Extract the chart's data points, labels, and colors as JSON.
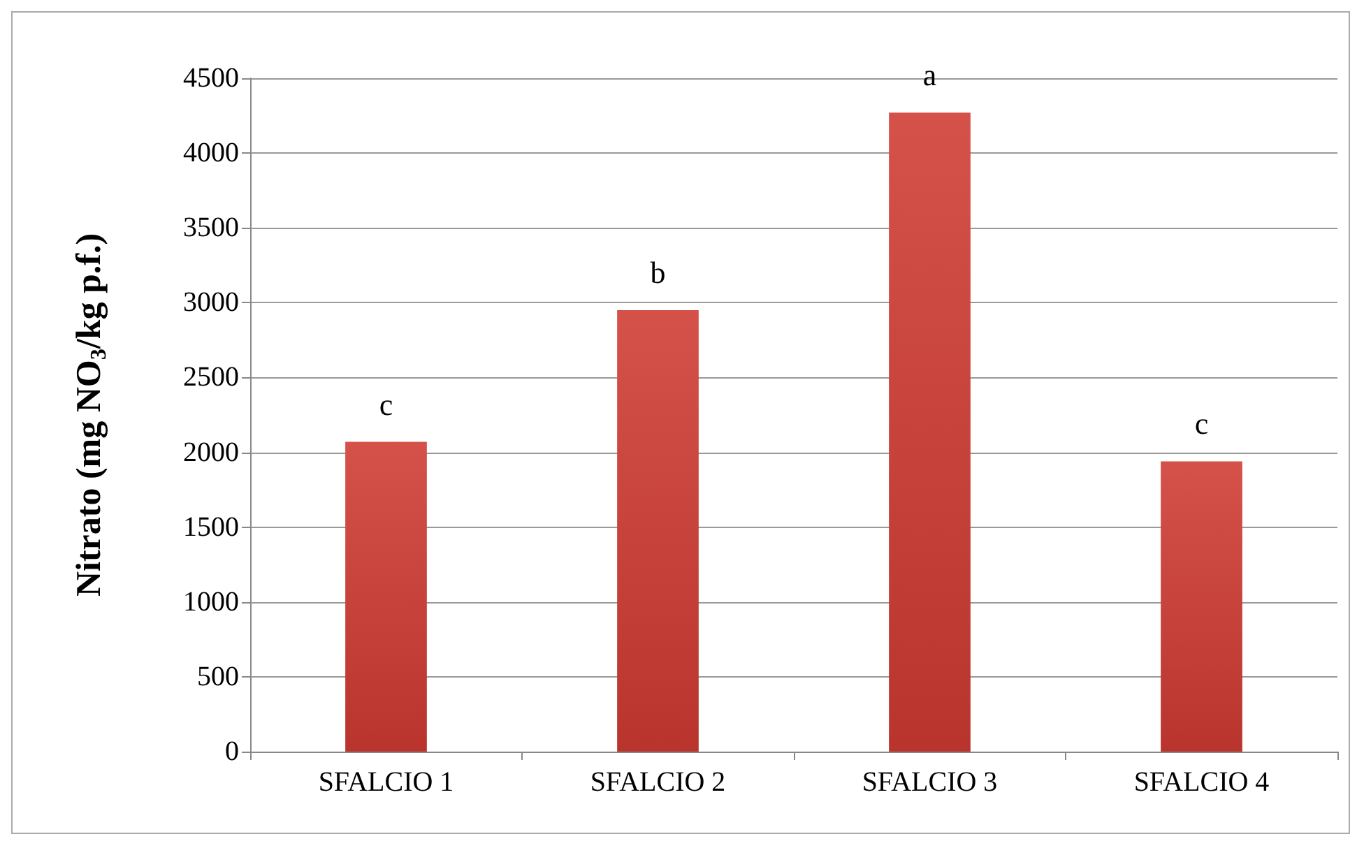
{
  "chart_data": {
    "type": "bar",
    "ylabel": "Nitrato (mg NO$_{3}$/kg p.f.)",
    "categories": [
      "SFALCIO 1",
      "SFALCIO 2",
      "SFALCIO 3",
      "SFALCIO 4"
    ],
    "values": [
      2070,
      2950,
      4270,
      1940
    ],
    "color": "#d4524a",
    "ylim": [
      0,
      4500
    ],
    "yticks": [
      0,
      500,
      1000,
      1500,
      2000,
      2500,
      3000,
      3500,
      4000,
      4500
    ],
    "grid": "y",
    "annotations": [
      {
        "text": "c",
        "x": "SFALCIO 1",
        "y": 2070
      },
      {
        "text": "b",
        "x": "SFALCIO 2",
        "y": 2950
      },
      {
        "text": "a",
        "x": "SFALCIO 3",
        "y": 4270
      },
      {
        "text": "c",
        "x": "SFALCIO 4",
        "y": 1940
      }
    ]
  }
}
